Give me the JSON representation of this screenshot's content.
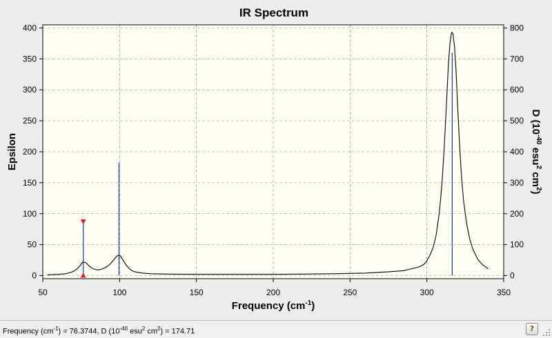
{
  "chart_data": {
    "type": "line",
    "title": "IR Spectrum",
    "xlabel": "Frequency (cm-1)",
    "xlabel_main": "Frequency (cm",
    "xlabel_sup": "-1",
    "xlabel_end": ")",
    "ylabel": "Epsilon",
    "y2label": "D (10-40 esu2 cm2)",
    "y2label_parts": [
      "D (10",
      "-40",
      " esu",
      "2",
      " cm",
      "2",
      ")"
    ],
    "xlim": [
      50,
      350
    ],
    "ylim": [
      -5,
      405
    ],
    "y2lim": [
      -10,
      810
    ],
    "x_ticks": [
      50,
      100,
      150,
      200,
      250,
      300,
      350
    ],
    "y_ticks": [
      0,
      50,
      100,
      150,
      200,
      250,
      300,
      350,
      400
    ],
    "y2_ticks": [
      0,
      100,
      200,
      300,
      400,
      500,
      600,
      700,
      800
    ],
    "grid": true,
    "spectrum_x": [
      53,
      60,
      65,
      68,
      70,
      72,
      74,
      76,
      78,
      80,
      82,
      84,
      86,
      88,
      90,
      92,
      94,
      96,
      98,
      99.5,
      100.5,
      102,
      104,
      106,
      108,
      110,
      115,
      120,
      130,
      150,
      180,
      200,
      220,
      240,
      260,
      275,
      285,
      290,
      295,
      298,
      300,
      302,
      304,
      306,
      308,
      309,
      310,
      311,
      312,
      313,
      314,
      315,
      316,
      316.5,
      317,
      318,
      319,
      320,
      321,
      322,
      323,
      324,
      326,
      328,
      330,
      333,
      336,
      340
    ],
    "spectrum_y": [
      1,
      2,
      3,
      5,
      7,
      10,
      15,
      22,
      21,
      16,
      12,
      10,
      9,
      10,
      12,
      15,
      19,
      25,
      31,
      33,
      32,
      26,
      18,
      12,
      8,
      6,
      4,
      3,
      2.5,
      2,
      2,
      2,
      2.5,
      3,
      4,
      6,
      8,
      11,
      14,
      18,
      24,
      33,
      45,
      65,
      100,
      125,
      155,
      195,
      240,
      290,
      340,
      375,
      392,
      393,
      390,
      370,
      330,
      275,
      225,
      180,
      145,
      118,
      82,
      58,
      42,
      27,
      18,
      11
    ],
    "sticks": [
      {
        "x": 76.3744,
        "d": 174.71
      },
      {
        "x": 99.6,
        "d": 365
      },
      {
        "x": 316.5,
        "d": 720
      }
    ],
    "selected_stick": 0,
    "colors": {
      "spectrum": "#000000",
      "stick": "#1a2bd6",
      "marker": "#e41c1c",
      "grid": "#8c8c8c",
      "plot_bg": "#fffff2"
    }
  },
  "status": {
    "text": "Frequency (cm-1) = 76.3744, D (10-40 esu2 cm2) = 174.71",
    "parts": [
      "Frequency (cm",
      "-1",
      ") = 76.3744, D (10",
      "-40",
      " esu",
      "2",
      " cm",
      "2",
      ") = 174.71"
    ],
    "help_icon": "help-icon"
  }
}
